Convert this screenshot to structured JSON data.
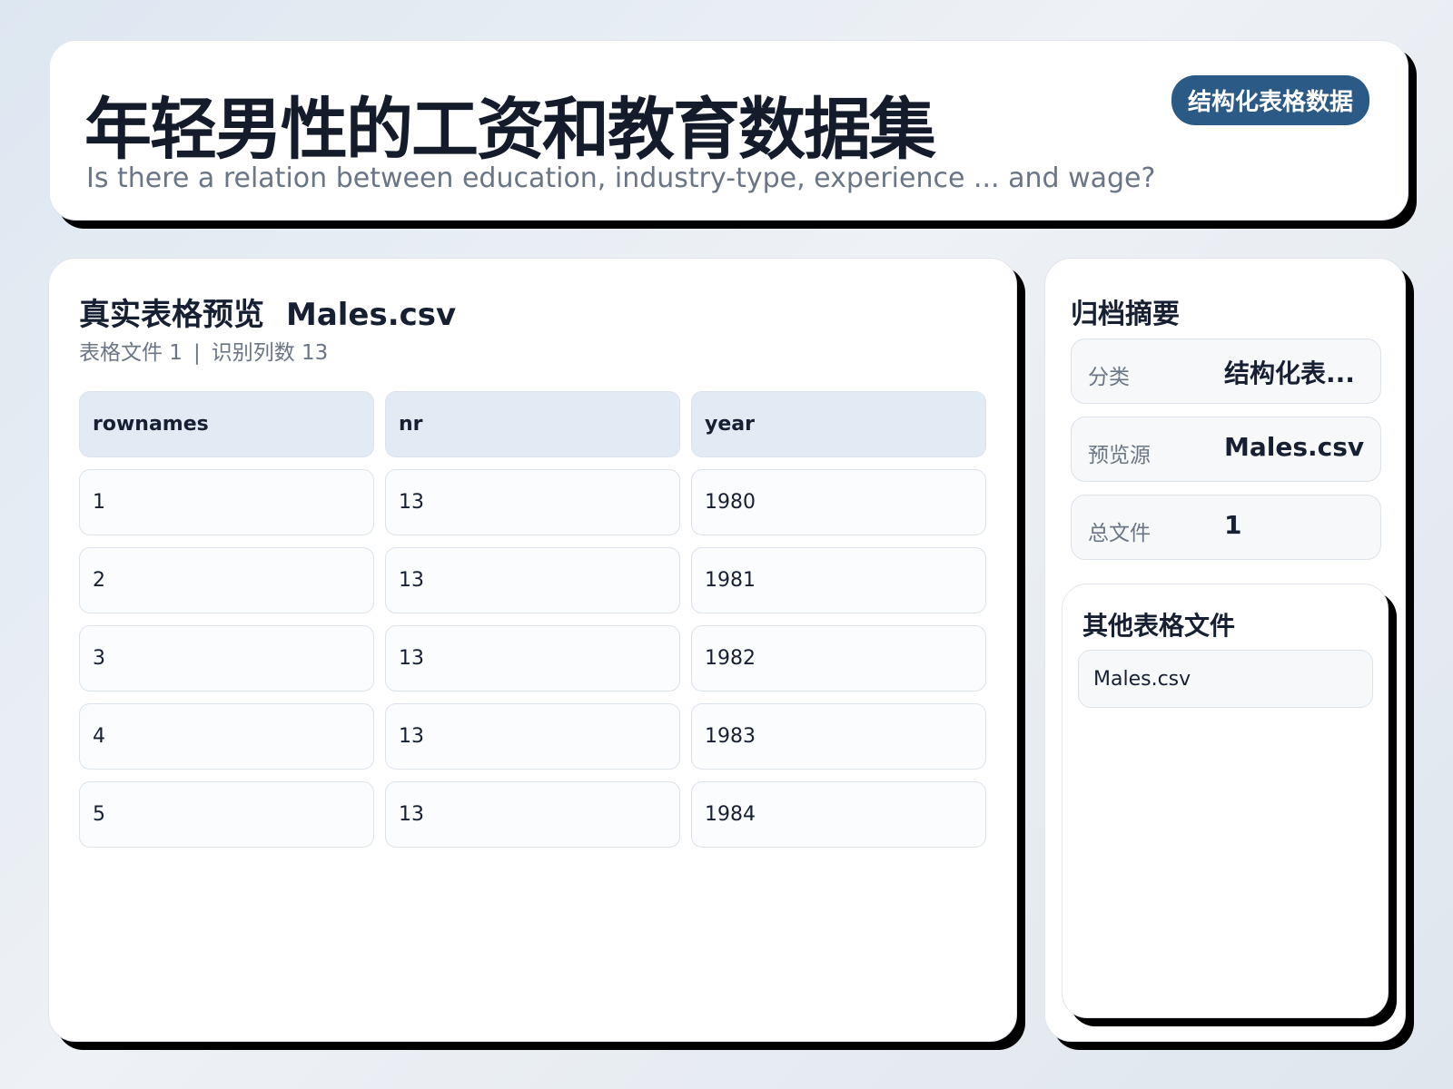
{
  "header": {
    "title": "年轻男性的工资和教育数据集",
    "subtitle": "Is there a relation between education, industry-type, experience ... and wage?",
    "badge": "结构化表格数据"
  },
  "preview": {
    "title": "真实表格预览",
    "filename": "Males.csv",
    "meta": [
      "表格文件 1",
      "识别列数 13"
    ],
    "separator": "|",
    "table": {
      "columns": [
        "rownames",
        "nr",
        "year"
      ],
      "rows": [
        [
          "1",
          "13",
          "1980"
        ],
        [
          "2",
          "13",
          "1981"
        ],
        [
          "3",
          "13",
          "1982"
        ],
        [
          "4",
          "13",
          "1983"
        ],
        [
          "5",
          "13",
          "1984"
        ]
      ]
    }
  },
  "summary": {
    "title": "归档摘要",
    "items": [
      {
        "label": "分类",
        "value": "结构化表..."
      },
      {
        "label": "预览源",
        "value": "Males.csv"
      },
      {
        "label": "总文件",
        "value": "1"
      }
    ]
  },
  "other_files": {
    "title": "其他表格文件",
    "files": [
      "Males.csv"
    ]
  }
}
